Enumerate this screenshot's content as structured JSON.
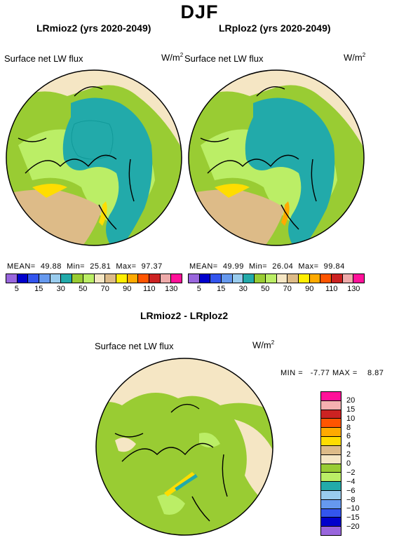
{
  "season": "DJF",
  "panels": [
    {
      "title": "LRmioz2 (yrs 2020-2049)",
      "variable": "Surface net LW flux",
      "unit": "W/m",
      "unit_exp": "2",
      "stats": "MEAN=  49.88  Min=  25.81  Max=  97.37"
    },
    {
      "title": "LRploz2 (yrs 2020-2049)",
      "variable": "Surface net LW flux",
      "unit": "W/m",
      "unit_exp": "2",
      "stats": "MEAN=  49.99  Min=  26.04  Max=  99.84"
    }
  ],
  "diff": {
    "title": "LRmioz2 - LRploz2",
    "variable": "Surface net LW flux",
    "unit": "W/m",
    "unit_exp": "2",
    "stats": "MIN =   -7.77 MAX =    8.87"
  },
  "top_colorbar": {
    "colors": [
      "#9966dd",
      "#0000cc",
      "#3355ee",
      "#6699ee",
      "#99ccee",
      "#22aaaa",
      "#99cc33",
      "#bbee66",
      "#f5e6c4",
      "#ddbb88",
      "#ffee00",
      "#ffaa00",
      "#ff5500",
      "#cc2222",
      "#eeaaaa",
      "#ff1199"
    ],
    "labels": [
      "5",
      "15",
      "30",
      "50",
      "70",
      "90",
      "110",
      "130"
    ],
    "label_positions": [
      0.0625,
      0.1875,
      0.3125,
      0.4375,
      0.5625,
      0.6875,
      0.8125,
      0.9375
    ]
  },
  "diff_colorbar": {
    "colors_top_to_bottom": [
      "#ff1199",
      "#f5b0b0",
      "#cc2222",
      "#ff5500",
      "#ffaa00",
      "#ffdd00",
      "#ddbb88",
      "#f5e6c4",
      "#99cc33",
      "#bbee66",
      "#22aaaa",
      "#99ccee",
      "#6699ee",
      "#3355ee",
      "#0000cc",
      "#9966dd"
    ],
    "labels_top_to_bottom": [
      "20",
      "15",
      "10",
      "8",
      "6",
      "4",
      "2",
      "0",
      "−2",
      "−4",
      "−6",
      "−8",
      "−10",
      "−15",
      "−20"
    ]
  },
  "map_colors": {
    "ocean_teal": "#22aaaa",
    "land_green": "#99cc33",
    "light_green": "#bbee66",
    "tan": "#ddbb88",
    "cream": "#f5e6c4",
    "yellow": "#ffdd00",
    "coast": "#000000"
  }
}
